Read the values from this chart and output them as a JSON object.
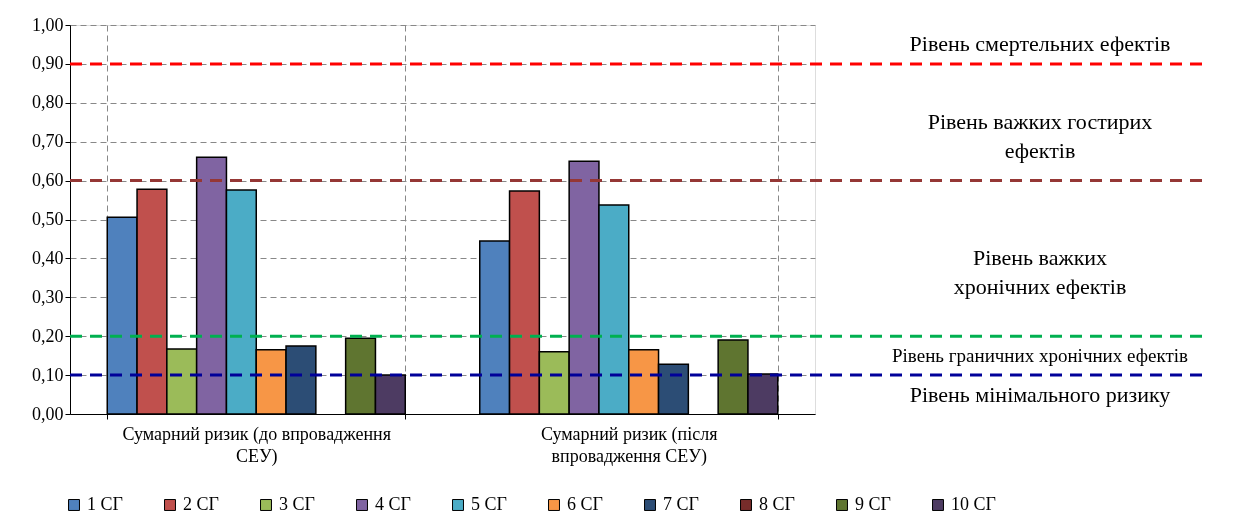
{
  "chart_data": {
    "type": "bar",
    "categories": [
      "Сумарний ризик (до впровадження СЕУ)",
      "Сумарний ризик (після впровадження СЕУ)"
    ],
    "series": [
      {
        "name": "1 СГ",
        "color": "#4f81bd",
        "values": [
          0.506,
          0.445
        ]
      },
      {
        "name": "2 СГ",
        "color": "#c0504d",
        "values": [
          0.578,
          0.573
        ]
      },
      {
        "name": "3 СГ",
        "color": "#9bbb59",
        "values": [
          0.167,
          0.16
        ]
      },
      {
        "name": "4 СГ",
        "color": "#8064a2",
        "values": [
          0.66,
          0.65
        ]
      },
      {
        "name": "5 СГ",
        "color": "#4bacc6",
        "values": [
          0.576,
          0.537
        ]
      },
      {
        "name": "6 СГ",
        "color": "#f79646",
        "values": [
          0.165,
          0.165
        ]
      },
      {
        "name": "7 СГ",
        "color": "#2c4d75",
        "values": [
          0.175,
          0.128
        ]
      },
      {
        "name": "8 СГ",
        "color": "#772c2a",
        "values": [
          null,
          null
        ]
      },
      {
        "name": "9 СГ",
        "color": "#5f7530",
        "values": [
          0.195,
          0.19
        ]
      },
      {
        "name": "10 СГ",
        "color": "#4d3b62",
        "values": [
          0.1,
          0.103
        ]
      }
    ],
    "ylim": [
      0,
      1
    ],
    "yticks": [
      {
        "value": 0,
        "label": "0,00"
      },
      {
        "value": 0.1,
        "label": "0,10"
      },
      {
        "value": 0.2,
        "label": "0,20"
      },
      {
        "value": 0.3,
        "label": "0,30"
      },
      {
        "value": 0.4,
        "label": "0,40"
      },
      {
        "value": 0.5,
        "label": "0,50"
      },
      {
        "value": 0.6,
        "label": "0,60"
      },
      {
        "value": 0.7,
        "label": "0,70"
      },
      {
        "value": 0.8,
        "label": "0,80"
      },
      {
        "value": 0.9,
        "label": "0,90"
      },
      {
        "value": 1,
        "label": "1,00"
      }
    ],
    "ref_lines": [
      {
        "axis": "y",
        "value": 0.9,
        "color": "#ff0000",
        "line_style": "dashed"
      },
      {
        "axis": "y",
        "value": 0.6,
        "color": "#953735",
        "line_style": "dashed"
      },
      {
        "axis": "y",
        "value": 0.2,
        "color": "#00b050",
        "line_style": "dashed"
      },
      {
        "axis": "y",
        "value": 0.1,
        "color": "#000099",
        "line_style": "dashed"
      }
    ],
    "annotations": [
      "Рівень смертельних ефектів",
      "Рівень важких гостирих ефектів",
      "Рівень важких хронічних ефектів",
      "Рівень граничних хронічних ефектів",
      "Рівень мінімального ризику"
    ],
    "grid": true,
    "legend": "bottom"
  }
}
